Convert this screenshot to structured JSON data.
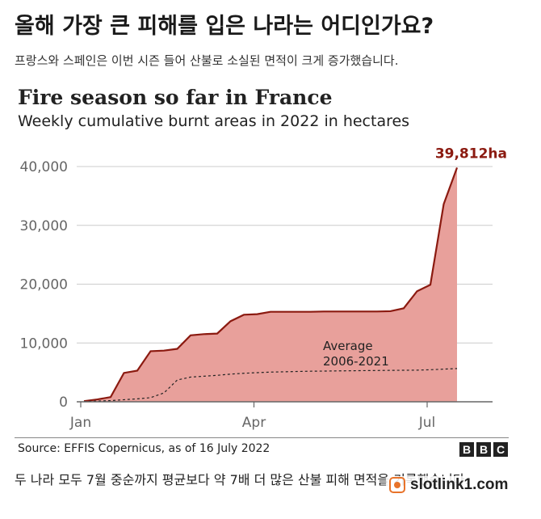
{
  "headline": "올해 가장 큰 피해를 입은 나라는 어디인가요?",
  "standfirst": "프랑스와 스페인은 이번 시즌 들어 산불로 소실된 면적이 크게 증가했습니다.",
  "chart_data": {
    "type": "area",
    "title": "Fire season so far in France",
    "subtitle": "Weekly cumulative burnt areas in 2022 in hectares",
    "x_ticks": [
      "Jan",
      "Apr",
      "Jul"
    ],
    "y_ticks": [
      "0",
      "10,000",
      "20,000",
      "30,000",
      "40,000"
    ],
    "ylim": [
      0,
      40000
    ],
    "x_unit": "week of 2022",
    "series": [
      {
        "name": "2022",
        "x": [
          1,
          2,
          3,
          4,
          5,
          6,
          7,
          8,
          9,
          10,
          11,
          12,
          13,
          14,
          15,
          16,
          17,
          18,
          19,
          20,
          21,
          22,
          23,
          24,
          25,
          26,
          27,
          28,
          29
        ],
        "values": [
          100,
          400,
          800,
          4900,
          5300,
          8600,
          8700,
          9000,
          11300,
          11500,
          11600,
          13700,
          14800,
          14900,
          15300,
          15300,
          15300,
          15300,
          15350,
          15350,
          15350,
          15350,
          15350,
          15400,
          15900,
          18800,
          19900,
          33600,
          39812
        ]
      },
      {
        "name": "Average 2006-2021",
        "x": [
          1,
          2,
          3,
          4,
          5,
          6,
          7,
          8,
          9,
          10,
          11,
          12,
          13,
          14,
          15,
          16,
          17,
          18,
          19,
          20,
          21,
          22,
          23,
          24,
          25,
          26,
          27,
          28,
          29
        ],
        "values": [
          50,
          120,
          200,
          350,
          500,
          700,
          1500,
          3700,
          4200,
          4350,
          4500,
          4700,
          4850,
          4950,
          5050,
          5100,
          5150,
          5200,
          5220,
          5250,
          5270,
          5300,
          5320,
          5340,
          5360,
          5380,
          5450,
          5550,
          5650
        ]
      }
    ],
    "end_label": "39,812ha",
    "annotation": [
      "Average",
      "2006-2021"
    ],
    "grid": true,
    "colors": {
      "fill": "#e8a09b",
      "line": "#8b1a10",
      "average": "#222222",
      "grid": "#cccccc",
      "axis": "#666666"
    }
  },
  "source": "Source: EFFIS Copernicus, as of 16 July 2022",
  "bbc_letters": [
    "B",
    "B",
    "C"
  ],
  "caption": "두 나라 모두 7월 중순까지 평균보다 약 7배 더 많은 산불 피해 면적을 기록했습니다.",
  "watermark": {
    "text": "slotlink1.com",
    "icon": "slot-logo-icon"
  }
}
